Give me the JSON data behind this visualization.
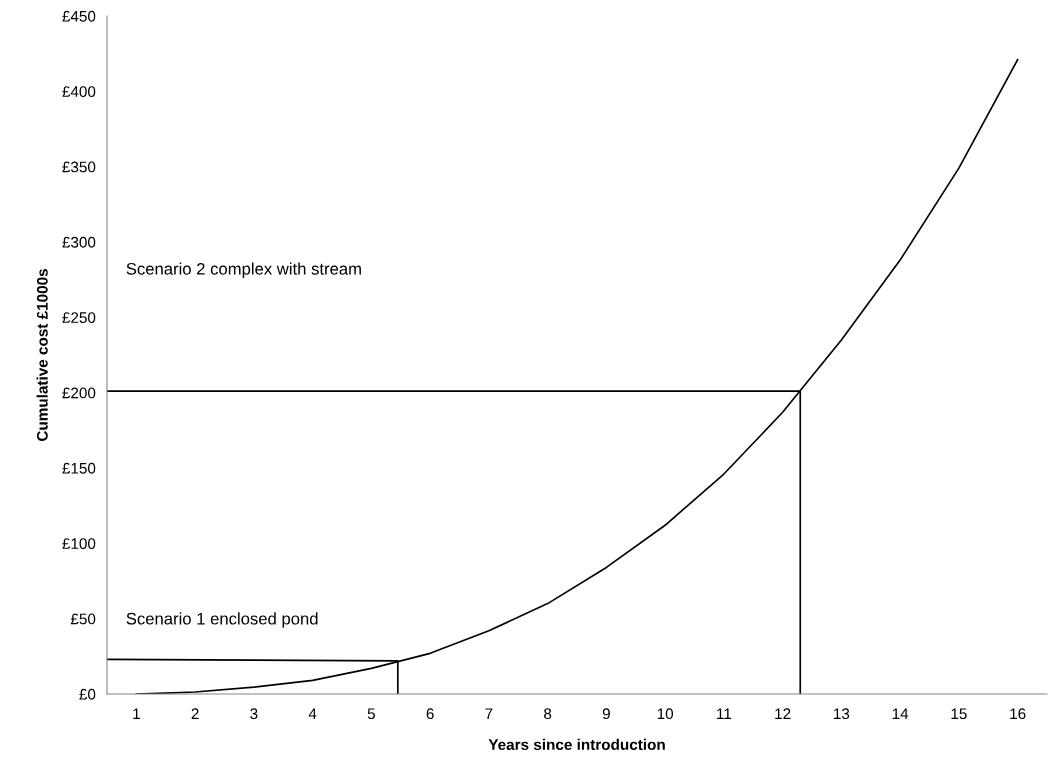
{
  "chart_data": {
    "type": "line",
    "xlabel": "Years since introduction",
    "ylabel": "Cumulative cost £1000s",
    "xlim": [
      0.5,
      16.5
    ],
    "xticks": [
      1,
      2,
      3,
      4,
      5,
      6,
      7,
      8,
      9,
      10,
      11,
      12,
      13,
      14,
      15,
      16
    ],
    "ylim": [
      0,
      450
    ],
    "yticks": [
      {
        "value": 0,
        "label": "£0"
      },
      {
        "value": 50,
        "label": "£50"
      },
      {
        "value": 100,
        "label": "£100"
      },
      {
        "value": 150,
        "label": "£150"
      },
      {
        "value": 200,
        "label": "£200"
      },
      {
        "value": 250,
        "label": "£250"
      },
      {
        "value": 300,
        "label": "£300"
      },
      {
        "value": 350,
        "label": "£350"
      },
      {
        "value": 400,
        "label": "£400"
      },
      {
        "value": 450,
        "label": "£450"
      }
    ],
    "grid": false,
    "legend": false,
    "marker": "none",
    "line_style": "solid",
    "series": [
      {
        "color": "#000000",
        "x": [
          1,
          2,
          3,
          4,
          5,
          6,
          7,
          8,
          9,
          10,
          11,
          12,
          13,
          14,
          15,
          16
        ],
        "values": [
          0,
          1.3,
          4.6,
          9,
          17,
          27,
          42,
          60,
          84,
          112,
          146,
          187,
          235,
          288,
          349,
          421
        ]
      },
      {
        "color": "#000000",
        "x": [
          0.5,
          5.45,
          5.45
        ],
        "values": [
          23,
          22,
          0
        ]
      },
      {
        "color": "#000000",
        "x": [
          0.5,
          12.3,
          12.3
        ],
        "values": [
          201,
          201,
          0
        ]
      }
    ],
    "annotations": [
      "Scenario 1 enclosed pond",
      "Scenario 2 complex with stream"
    ]
  }
}
